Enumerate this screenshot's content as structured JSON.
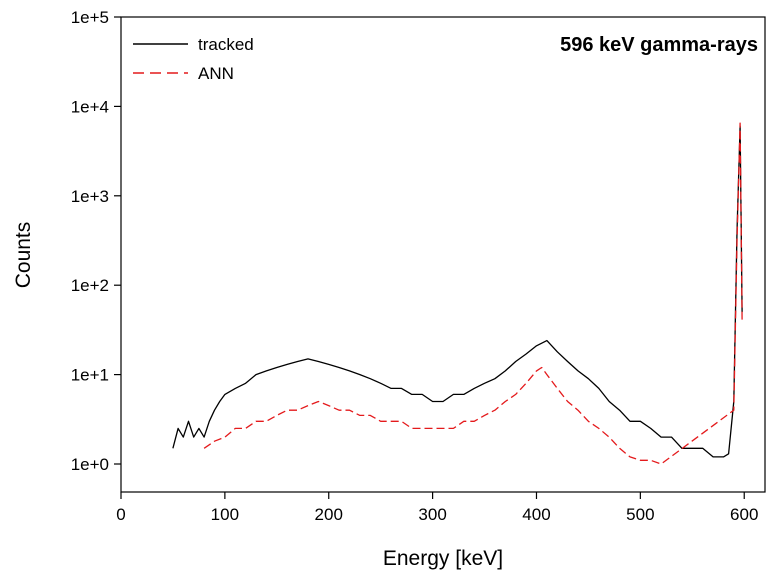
{
  "chart_data": {
    "type": "line",
    "title": "",
    "annotation": "596 keV gamma-rays",
    "xlabel": "Energy [keV]",
    "ylabel": "Counts",
    "xlim": [
      0,
      620
    ],
    "ylim": [
      1,
      100000
    ],
    "yscale": "log",
    "grid": false,
    "legend_position": "top-left",
    "xticks": [
      0,
      100,
      200,
      300,
      400,
      500,
      600
    ],
    "xtick_labels": [
      "0",
      "100",
      "200",
      "300",
      "400",
      "500",
      "600"
    ],
    "yticks": [
      1,
      10,
      100,
      1000,
      10000,
      100000
    ],
    "ytick_labels": [
      "1e+0",
      "1e+1",
      "1e+2",
      "1e+3",
      "1e+4",
      "1e+5"
    ],
    "series": [
      {
        "name": "tracked",
        "color": "#000000",
        "style": "solid",
        "x": [
          50,
          55,
          60,
          65,
          70,
          75,
          80,
          85,
          90,
          95,
          100,
          110,
          120,
          130,
          140,
          150,
          160,
          170,
          180,
          190,
          200,
          210,
          220,
          230,
          240,
          250,
          260,
          270,
          280,
          290,
          300,
          310,
          320,
          330,
          340,
          350,
          360,
          370,
          380,
          390,
          400,
          410,
          420,
          430,
          440,
          450,
          460,
          470,
          480,
          490,
          500,
          510,
          520,
          530,
          540,
          550,
          560,
          570,
          580,
          585,
          590,
          593,
          596,
          598
        ],
        "values": [
          1.5,
          2.5,
          2,
          3,
          2,
          2.5,
          2,
          3,
          4,
          5,
          6,
          7,
          8,
          10,
          11,
          12,
          13,
          14,
          15,
          14,
          13,
          12,
          11,
          10,
          9,
          8,
          7,
          7,
          6,
          6,
          5,
          5,
          6,
          6,
          7,
          8,
          9,
          11,
          14,
          17,
          21,
          24,
          18,
          14,
          11,
          9,
          7,
          5,
          4,
          3,
          3,
          2.5,
          2,
          2,
          1.5,
          1.5,
          1.5,
          1.2,
          1.2,
          1.3,
          5,
          400,
          6000,
          50
        ]
      },
      {
        "name": "ANN",
        "color": "#e41a1c",
        "style": "dashed",
        "x": [
          80,
          90,
          100,
          110,
          120,
          130,
          140,
          150,
          160,
          170,
          180,
          190,
          200,
          210,
          220,
          230,
          240,
          250,
          260,
          270,
          280,
          290,
          300,
          310,
          320,
          330,
          340,
          350,
          360,
          370,
          380,
          390,
          400,
          405,
          410,
          420,
          430,
          440,
          450,
          460,
          470,
          480,
          490,
          500,
          510,
          520,
          590,
          593,
          596,
          598
        ],
        "values": [
          1.5,
          1.8,
          2,
          2.5,
          2.5,
          3,
          3,
          3.5,
          4,
          4,
          4.5,
          5,
          4.5,
          4,
          4,
          3.5,
          3.5,
          3,
          3,
          3,
          2.5,
          2.5,
          2.5,
          2.5,
          2.5,
          3,
          3,
          3.5,
          4,
          5,
          6,
          8,
          11,
          12,
          10,
          7,
          5,
          4,
          3,
          2.5,
          2,
          1.5,
          1.2,
          1.1,
          1.1,
          1,
          4,
          300,
          6500,
          40
        ]
      }
    ]
  }
}
